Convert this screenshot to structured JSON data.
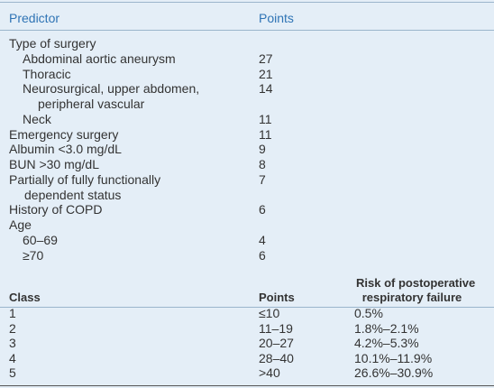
{
  "predictors": {
    "header": {
      "predictor": "Predictor",
      "points": "Points"
    },
    "rows": [
      {
        "label": "Type of surgery",
        "items": [
          {
            "label": [
              "Abdominal aortic aneurysm"
            ],
            "points": "27"
          },
          {
            "label": [
              "Thoracic"
            ],
            "points": "21"
          },
          {
            "label": [
              "Neurosurgical, upper abdomen,",
              "peripheral vascular"
            ],
            "points": "14"
          },
          {
            "label": [
              "Neck"
            ],
            "points": "11"
          }
        ]
      },
      {
        "label": [
          "Emergency surgery"
        ],
        "points": "11"
      },
      {
        "label": [
          "Albumin <3.0 mg/dL"
        ],
        "points": "9"
      },
      {
        "label": [
          "BUN >30 mg/dL"
        ],
        "points": "8"
      },
      {
        "label": [
          "Partially of fully functionally",
          "dependent status"
        ],
        "points": "7"
      },
      {
        "label": [
          "History of COPD"
        ],
        "points": "6"
      },
      {
        "label": "Age",
        "items": [
          {
            "label": [
              "60–69"
            ],
            "points": "4"
          },
          {
            "label": [
              "≥70"
            ],
            "points": "6"
          }
        ]
      }
    ]
  },
  "classes": {
    "header": {
      "class": "Class",
      "points": "Points",
      "risk": [
        "Risk of postoperative",
        "respiratory failure"
      ]
    },
    "rows": [
      [
        "1",
        "≤10",
        "0.5%"
      ],
      [
        "2",
        "11–19",
        "1.8%–2.1%"
      ],
      [
        "3",
        "20–27",
        "4.2%–5.3%"
      ],
      [
        "4",
        "28–40",
        "10.1%–11.9%"
      ],
      [
        "5",
        ">40",
        "26.6%–30.9%"
      ]
    ]
  }
}
